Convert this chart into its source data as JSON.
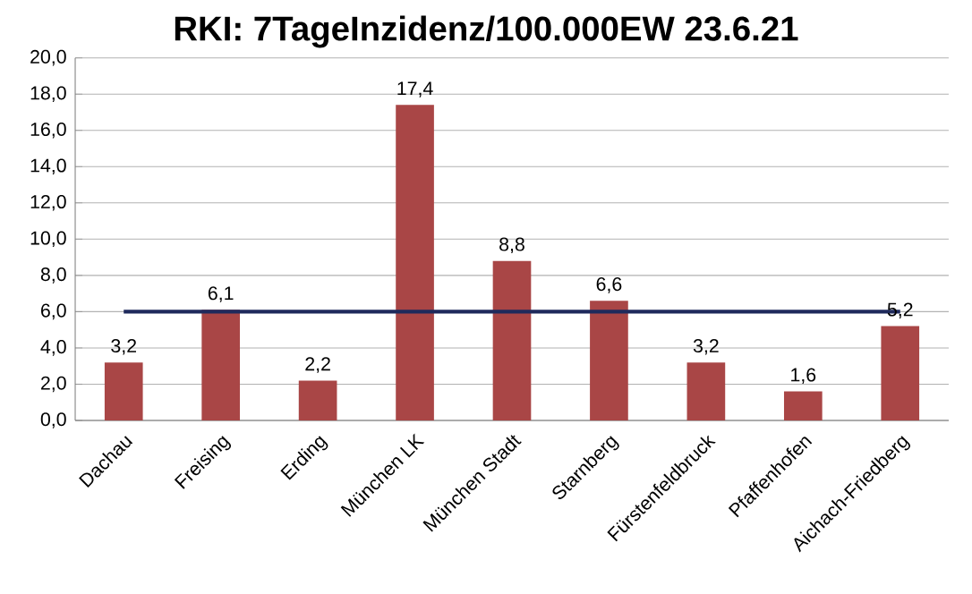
{
  "chart_data": {
    "type": "bar",
    "title": "RKI: 7TageInzidenz/100.000EW 23.6.21",
    "categories": [
      "Dachau",
      "Freising",
      "Erding",
      "München LK",
      "München Stadt",
      "Starnberg",
      "Fürstenfeldbruck",
      "Pfaffenhofen",
      "Aichach-Friedberg"
    ],
    "series": [
      {
        "color": "#a94646",
        "values": [
          3.2,
          6.1,
          2.2,
          17.4,
          8.8,
          6.6,
          3.2,
          1.6,
          5.2
        ],
        "value_labels": [
          "3,2",
          "6,1",
          "2,2",
          "17,4",
          "8,8",
          "6,6",
          "3,2",
          "1,6",
          "5,2"
        ]
      },
      {
        "type": "line",
        "color": "#1f2a5c",
        "values": [
          6.0,
          6.0,
          6.0,
          6.0,
          6.0,
          6.0,
          6.0,
          6.0,
          6.0
        ]
      }
    ],
    "ylim": [
      0,
      20
    ],
    "yticks": [
      {
        "value": 0,
        "label": "0,0"
      },
      {
        "value": 2,
        "label": "2,0"
      },
      {
        "value": 4,
        "label": "4,0"
      },
      {
        "value": 6,
        "label": "6,0"
      },
      {
        "value": 8,
        "label": "8,0"
      },
      {
        "value": 10,
        "label": "10,0"
      },
      {
        "value": 12,
        "label": "12,0"
      },
      {
        "value": 14,
        "label": "14,0"
      },
      {
        "value": 16,
        "label": "16,0"
      },
      {
        "value": 18,
        "label": "18,0"
      },
      {
        "value": 20,
        "label": "20,0"
      }
    ],
    "grid": "y"
  }
}
